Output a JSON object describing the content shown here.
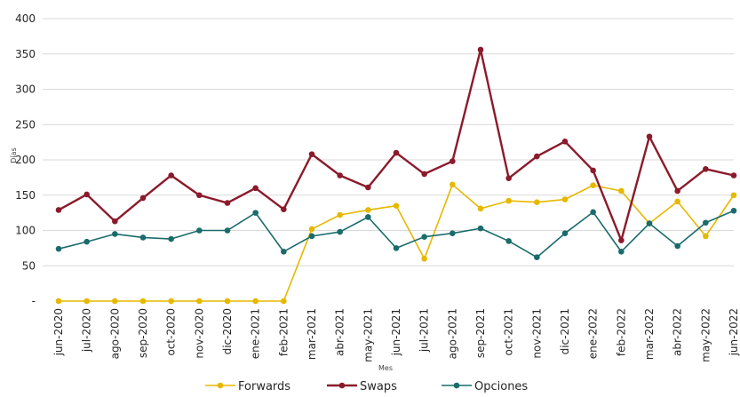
{
  "chart_data": {
    "type": "line",
    "title": "",
    "xlabel": "Mes",
    "ylabel": "Días",
    "ylim": [
      0,
      400
    ],
    "y_ticks": [
      0,
      50,
      100,
      150,
      200,
      250,
      300,
      350,
      400
    ],
    "y_tick_labels": [
      "-",
      "50",
      "100",
      "150",
      "200",
      "250",
      "300",
      "350",
      "400"
    ],
    "grid": "horizontal",
    "legend_position": "bottom",
    "categories": [
      "jun-2020",
      "jul-2020",
      "ago-2020",
      "sep-2020",
      "oct-2020",
      "nov-2020",
      "dic-2020",
      "ene-2021",
      "feb-2021",
      "mar-2021",
      "abr-2021",
      "may-2021",
      "jun-2021",
      "jul-2021",
      "ago-2021",
      "sep-2021",
      "oct-2021",
      "nov-2021",
      "dic-2021",
      "ene-2022",
      "feb-2022",
      "mar-2022",
      "abr-2022",
      "may-2022",
      "jun-2022"
    ],
    "series": [
      {
        "name": "Forwards",
        "color": "#e6b800",
        "values": [
          0,
          0,
          0,
          0,
          0,
          0,
          0,
          0,
          0,
          102,
          122,
          129,
          135,
          60,
          165,
          131,
          142,
          140,
          144,
          164,
          156,
          110,
          141,
          92,
          150
        ]
      },
      {
        "name": "Swaps",
        "color": "#8b1a2b",
        "values": [
          129,
          151,
          113,
          146,
          178,
          150,
          139,
          160,
          130,
          208,
          178,
          161,
          210,
          180,
          198,
          356,
          174,
          205,
          226,
          185,
          86,
          233,
          156,
          187,
          178
        ]
      },
      {
        "name": "Opciones",
        "color": "#1a6b6b",
        "values": [
          74,
          84,
          95,
          90,
          88,
          100,
          100,
          125,
          70,
          92,
          98,
          119,
          75,
          91,
          96,
          103,
          85,
          62,
          96,
          126,
          70,
          110,
          78,
          111,
          128
        ]
      }
    ]
  }
}
